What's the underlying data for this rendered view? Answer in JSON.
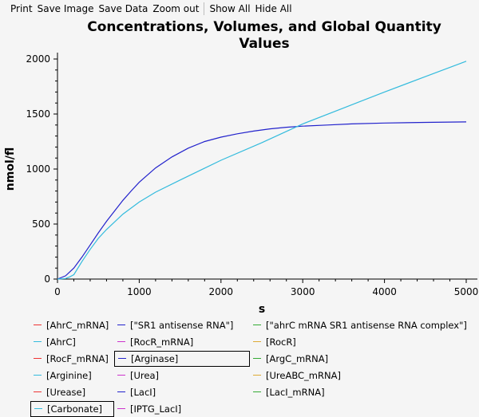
{
  "toolbar": {
    "print": "Print",
    "save_image": "Save Image",
    "save_data": "Save Data",
    "zoom_out": "Zoom out",
    "show_all": "Show All",
    "hide_all": "Hide All"
  },
  "chart_data": {
    "type": "line",
    "title_line1": "Concentrations, Volumes, and Global Quantity",
    "title_line2": "Values",
    "xlabel": "s",
    "ylabel": "nmol/fl",
    "xlim": [
      0,
      5000
    ],
    "ylim": [
      0,
      2000
    ],
    "xticks": [
      "0",
      "1000",
      "2000",
      "3000",
      "4000",
      "5000"
    ],
    "yticks": [
      "0",
      "500",
      "1000",
      "1500",
      "2000"
    ],
    "grid": false,
    "series": [
      {
        "name": "[Arginase]",
        "color": "#2222cc",
        "x": [
          0,
          100,
          200,
          300,
          400,
          500,
          600,
          700,
          800,
          900,
          1000,
          1200,
          1400,
          1600,
          1800,
          2000,
          2200,
          2400,
          2600,
          2800,
          3000,
          3300,
          3600,
          4000,
          4500,
          5000
        ],
        "y": [
          0,
          30,
          100,
          200,
          310,
          420,
          525,
          620,
          715,
          800,
          880,
          1010,
          1110,
          1190,
          1250,
          1290,
          1320,
          1345,
          1365,
          1380,
          1390,
          1400,
          1410,
          1418,
          1424,
          1428
        ]
      },
      {
        "name": "[Carbonate]",
        "color": "#33bbdd",
        "x": [
          0,
          100,
          150,
          200,
          300,
          400,
          500,
          600,
          800,
          1000,
          1200,
          1500,
          2000,
          2500,
          3000,
          3500,
          4000,
          4500,
          5000
        ],
        "y": [
          0,
          5,
          20,
          40,
          160,
          270,
          370,
          450,
          590,
          700,
          790,
          900,
          1080,
          1240,
          1410,
          1555,
          1700,
          1840,
          1980
        ]
      }
    ]
  },
  "legend": {
    "rows": [
      [
        {
          "label": "[AhrC_mRNA]",
          "color": "#ee3333",
          "focused": false
        },
        {
          "label": "[\"SR1 antisense RNA\"]",
          "color": "#2222cc",
          "focused": false
        },
        {
          "label": "[\"ahrC mRNA SR1 antisense RNA complex\"]",
          "color": "#33aa33",
          "focused": false
        }
      ],
      [
        {
          "label": "[AhrC]",
          "color": "#33bbdd",
          "focused": false
        },
        {
          "label": "[RocR_mRNA]",
          "color": "#cc33cc",
          "focused": false
        },
        {
          "label": "[RocR]",
          "color": "#ddaa33",
          "focused": false
        }
      ],
      [
        {
          "label": "[RocF_mRNA]",
          "color": "#ee3333",
          "focused": false
        },
        {
          "label": "[Arginase]",
          "color": "#2222cc",
          "focused": true
        },
        {
          "label": "[ArgC_mRNA]",
          "color": "#33aa33",
          "focused": false
        }
      ],
      [
        {
          "label": "[Arginine]",
          "color": "#33bbdd",
          "focused": false
        },
        {
          "label": "[Urea]",
          "color": "#cc33cc",
          "focused": false
        },
        {
          "label": "[UreABC_mRNA]",
          "color": "#ddaa33",
          "focused": false
        }
      ],
      [
        {
          "label": "[Urease]",
          "color": "#ee3333",
          "focused": false
        },
        {
          "label": "[LacI]",
          "color": "#2222cc",
          "focused": false
        },
        {
          "label": "[LacI_mRNA]",
          "color": "#33aa33",
          "focused": false
        }
      ],
      [
        {
          "label": "[Carbonate]",
          "color": "#33bbdd",
          "focused": true
        },
        {
          "label": "[IPTG_LacI]",
          "color": "#cc33cc",
          "focused": false
        }
      ]
    ]
  }
}
